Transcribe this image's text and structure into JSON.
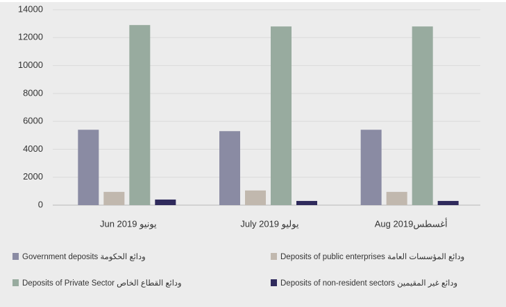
{
  "chart_data": {
    "type": "bar",
    "categories": [
      "Jun 2019 يونيو",
      "July 2019 يوليو",
      "Aug 2019أغسطس"
    ],
    "series": [
      {
        "name": "Government deposits ودائع الحكومة",
        "color": "#8a8ba3",
        "values": [
          5400,
          5300,
          5400
        ]
      },
      {
        "name": "Deposits of public enterprises ودائع المؤسسات العامة",
        "color": "#c1b8ae",
        "values": [
          950,
          1050,
          950
        ]
      },
      {
        "name": "Deposits of Private Sector ودائع القطاع الخاص",
        "color": "#98ab9f",
        "values": [
          12900,
          12800,
          12800
        ]
      },
      {
        "name": "Deposits of non-resident sectors ودائع غير المقيمين",
        "color": "#2f2a5c",
        "values": [
          400,
          300,
          300
        ]
      }
    ],
    "ylim": [
      0,
      14000
    ],
    "yticks": [
      0,
      2000,
      4000,
      6000,
      8000,
      10000,
      12000,
      14000
    ],
    "grid": true
  }
}
